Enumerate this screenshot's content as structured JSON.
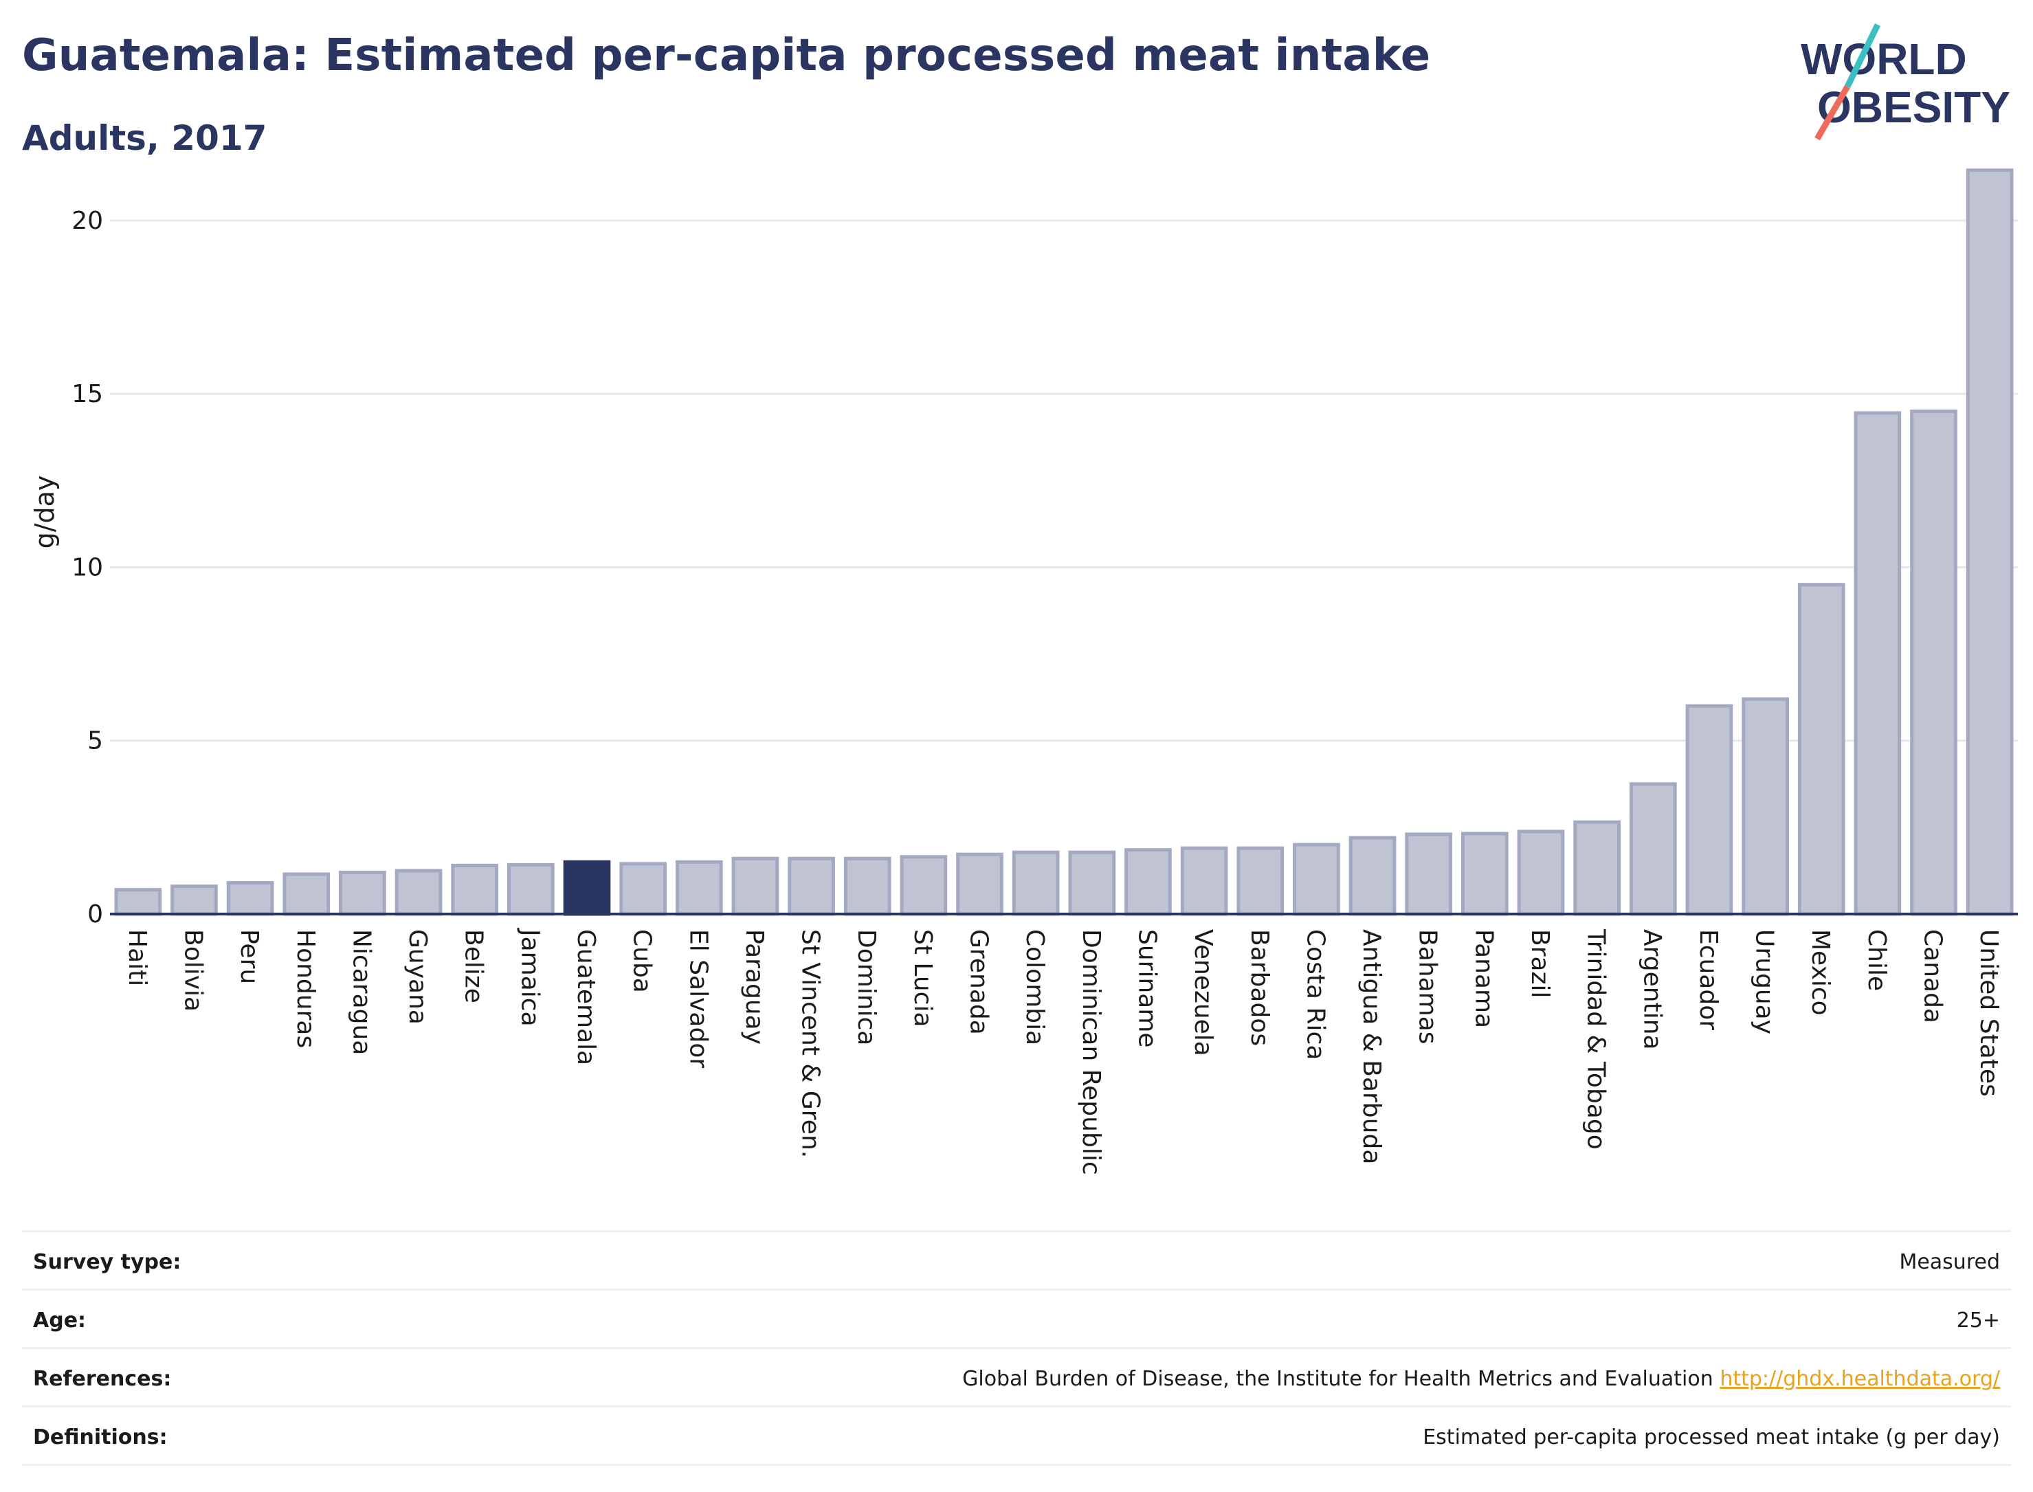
{
  "header": {
    "title": "Guatemala: Estimated per-capita processed meat intake",
    "subtitle": "Adults, 2017"
  },
  "logo": {
    "line1": "WORLD",
    "line2": "OBESITY",
    "colors": {
      "text": "#2b3561",
      "slash_top": "#3bbfc0",
      "slash_bottom": "#ef6a5b"
    }
  },
  "colors": {
    "bar_fill": "#c0c4d2",
    "bar_stroke": "#a3a9c0",
    "highlight_fill": "#2b3561",
    "axis": "#2b3561",
    "grid": "#e6e8ef",
    "link": "#e8a31c"
  },
  "chart_data": {
    "type": "bar",
    "ylabel": "g/day",
    "xlabel": "",
    "ylim": [
      0,
      22
    ],
    "yticks": [
      0,
      5,
      10,
      15,
      20
    ],
    "grid": true,
    "highlight": "Guatemala",
    "categories": [
      "Haiti",
      "Bolivia",
      "Peru",
      "Honduras",
      "Nicaragua",
      "Guyana",
      "Belize",
      "Jamaica",
      "Guatemala",
      "Cuba",
      "El Salvador",
      "Paraguay",
      "St Vincent & Gren.",
      "Dominica",
      "St Lucia",
      "Grenada",
      "Colombia",
      "Dominican Republic",
      "Suriname",
      "Venezuela",
      "Barbados",
      "Costa Rica",
      "Antigua & Barbuda",
      "Bahamas",
      "Panama",
      "Brazil",
      "Trinidad & Tobago",
      "Argentina",
      "Ecuador",
      "Uruguay",
      "Mexico",
      "Chile",
      "Canada",
      "United States"
    ],
    "values": [
      0.7,
      0.8,
      0.9,
      1.15,
      1.2,
      1.25,
      1.4,
      1.42,
      1.5,
      1.45,
      1.5,
      1.6,
      1.6,
      1.6,
      1.65,
      1.72,
      1.78,
      1.78,
      1.85,
      1.9,
      1.9,
      2.0,
      2.2,
      2.3,
      2.32,
      2.38,
      2.65,
      3.75,
      6.0,
      6.2,
      9.5,
      14.45,
      14.5,
      21.45
    ]
  },
  "meta": [
    {
      "label": "Survey type:",
      "value": "Measured"
    },
    {
      "label": "Age:",
      "value": "25+"
    },
    {
      "label": "References:",
      "value": "Global Burden of Disease, the Institute for Health Metrics and Evaluation",
      "link": "http://ghdx.healthdata.org/"
    },
    {
      "label": "Definitions:",
      "value": "Estimated per-capita processed meat intake (g per day)"
    }
  ]
}
